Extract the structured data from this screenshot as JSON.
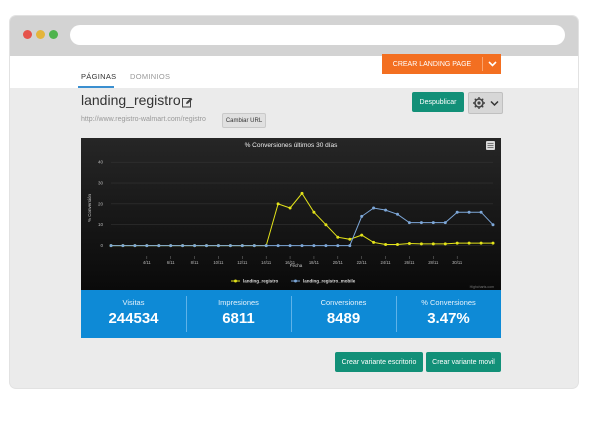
{
  "tabs": {
    "active": "PÁGINAS",
    "inactive": "DOMINIOS"
  },
  "header": {
    "create_button": "CREAR LANDING PAGE",
    "title": "landing_registro",
    "url": "http://www.registro-walmart.com/registro",
    "change_url_button": "Cambiar URL",
    "unpublish_button": "Despublicar"
  },
  "chart_data": {
    "type": "line",
    "title": "% Conversiones últimos 30 días",
    "xlabel": "Fecha",
    "ylabel": "% Conversión",
    "credits": "Highcharts.com",
    "yticks": [
      "40",
      "30",
      "20",
      "10",
      "0"
    ],
    "ylim": [
      -5,
      42
    ],
    "xticks": [
      "4/11",
      "6/11",
      "8/11",
      "10/11",
      "12/11",
      "14/11",
      "16/11",
      "18/11",
      "20/11",
      "22/11",
      "24/11",
      "26/11",
      "28/11",
      "30/11"
    ],
    "series": [
      {
        "name": "landing_registro",
        "color": "#e3e31a",
        "values": [
          0,
          0,
          0,
          0,
          0,
          0,
          0,
          0,
          0,
          0,
          0,
          0,
          0,
          0,
          20,
          18,
          25,
          16,
          10,
          4,
          3,
          5,
          1.5,
          0.5,
          0.5,
          1,
          0.8,
          0.8,
          0.8,
          1.2,
          1.2,
          1.2,
          1.2
        ]
      },
      {
        "name": "landing_registro_mobile",
        "color": "#7da7d8",
        "values": [
          0,
          0,
          0,
          0,
          0,
          0,
          0,
          0,
          0,
          0,
          0,
          0,
          0,
          0,
          0,
          0,
          0,
          0,
          0,
          0,
          0,
          14,
          18,
          17,
          15,
          11,
          11,
          11,
          11,
          16,
          16,
          16,
          10
        ]
      }
    ]
  },
  "stats": [
    {
      "label": "Visitas",
      "value": "244534"
    },
    {
      "label": "Impresiones",
      "value": "6811"
    },
    {
      "label": "Conversiones",
      "value": "8489"
    },
    {
      "label": "% Conversiones",
      "value": "3.47%"
    }
  ],
  "actions": {
    "variant_desktop": "Crear variante escritorio",
    "variant_mobile": "Crear variante movil"
  }
}
